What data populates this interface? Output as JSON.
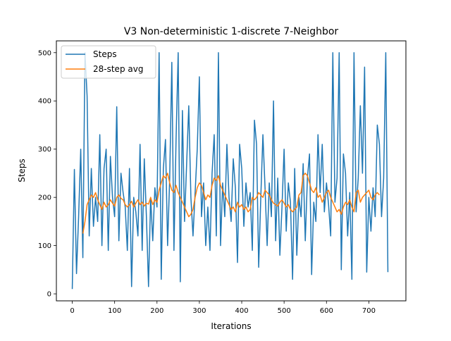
{
  "chart_data": {
    "type": "line",
    "title": "V3 Non-deterministic 1-discrete 7-Neighbor",
    "xlabel": "Iterations",
    "ylabel": "Steps",
    "xlim": [
      -37.5,
      787.5
    ],
    "ylim": [
      -14.5,
      524.5
    ],
    "xticks": [
      0,
      100,
      200,
      300,
      400,
      500,
      600,
      700
    ],
    "yticks": [
      0,
      100,
      200,
      300,
      400,
      500
    ],
    "legend_position": "upper-left",
    "series": [
      {
        "name": "Steps",
        "color": "#1f77b4",
        "x_start": 0,
        "x_step": 5,
        "values": [
          10,
          258,
          42,
          160,
          300,
          75,
          500,
          410,
          120,
          260,
          140,
          200,
          150,
          330,
          100,
          260,
          300,
          90,
          285,
          200,
          160,
          388,
          110,
          250,
          210,
          180,
          90,
          260,
          15,
          200,
          170,
          120,
          310,
          90,
          280,
          160,
          15,
          200,
          110,
          220,
          180,
          500,
          30,
          260,
          320,
          100,
          240,
          480,
          90,
          320,
          500,
          25,
          380,
          150,
          270,
          390,
          200,
          120,
          210,
          300,
          450,
          160,
          230,
          100,
          180,
          90,
          250,
          330,
          120,
          500,
          100,
          230,
          160,
          310,
          200,
          150,
          280,
          220,
          65,
          310,
          260,
          140,
          230,
          180,
          210,
          90,
          360,
          310,
          55,
          200,
          330,
          220,
          100,
          230,
          160,
          400,
          110,
          240,
          80,
          180,
          300,
          130,
          230,
          190,
          30,
          260,
          80,
          200,
          160,
          270,
          110,
          240,
          290,
          40,
          190,
          150,
          330,
          210,
          310,
          170,
          230,
          185,
          120,
          500,
          190,
          240,
          500,
          50,
          290,
          250,
          120,
          210,
          30,
          500,
          170,
          240,
          390,
          250,
          470,
          45,
          200,
          130,
          220,
          160,
          350,
          310,
          160,
          240,
          500,
          45
        ]
      },
      {
        "name": "28-step avg",
        "color": "#ff7f0e",
        "x_start": 25,
        "x_step": 5,
        "values": [
          125,
          150,
          185,
          195,
          205,
          200,
          210,
          195,
          185,
          175,
          190,
          180,
          185,
          195,
          188,
          182,
          200,
          205,
          198,
          195,
          185,
          180,
          185,
          192,
          180,
          188,
          195,
          185,
          190,
          182,
          188,
          186,
          200,
          185,
          195,
          190,
          215,
          230,
          245,
          240,
          250,
          230,
          215,
          210,
          225,
          210,
          200,
          190,
          180,
          170,
          160,
          165,
          175,
          200,
          220,
          230,
          225,
          210,
          195,
          205,
          200,
          225,
          240,
          235,
          245,
          225,
          215,
          205,
          195,
          185,
          175,
          180,
          170,
          190,
          180,
          185,
          175,
          180,
          170,
          175,
          200,
          195,
          200,
          210,
          205,
          200,
          215,
          210,
          205,
          195,
          188,
          185,
          182,
          190,
          195,
          188,
          180,
          185,
          175,
          170,
          175,
          180,
          205,
          210,
          245,
          250,
          245,
          230,
          215,
          210,
          220,
          200,
          205,
          190,
          200,
          210,
          215,
          200,
          190,
          180,
          170,
          175,
          165,
          180,
          190,
          185,
          195,
          180,
          170,
          210,
          215,
          190,
          200,
          205,
          210,
          215,
          200,
          195,
          205,
          210,
          205
        ]
      }
    ]
  }
}
